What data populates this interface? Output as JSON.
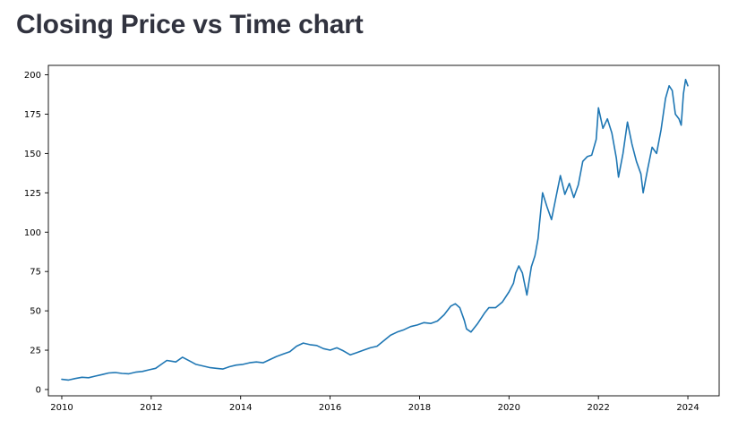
{
  "page": {
    "title": "Closing Price vs Time chart"
  },
  "colors": {
    "line": "#1f77b4",
    "axis": "#000000",
    "title": "#31333f"
  },
  "chart_data": {
    "type": "line",
    "title": "",
    "xlabel": "",
    "ylabel": "",
    "grid": false,
    "legend": "none",
    "xlim": [
      2009.7,
      2024.7
    ],
    "ylim": [
      -4,
      206
    ],
    "x_ticks": [
      2010,
      2012,
      2014,
      2016,
      2018,
      2020,
      2022,
      2024
    ],
    "x_tick_labels": [
      "2010",
      "2012",
      "2014",
      "2016",
      "2018",
      "2020",
      "2022",
      "2024"
    ],
    "y_ticks": [
      0,
      25,
      50,
      75,
      100,
      125,
      150,
      175,
      200
    ],
    "y_tick_labels": [
      "0",
      "25",
      "50",
      "75",
      "100",
      "125",
      "150",
      "175",
      "200"
    ],
    "series": [
      {
        "name": "",
        "x": [
          2010.0,
          2010.15,
          2010.3,
          2010.45,
          2010.6,
          2010.75,
          2010.9,
          2011.05,
          2011.2,
          2011.35,
          2011.5,
          2011.65,
          2011.8,
          2011.95,
          2012.1,
          2012.25,
          2012.35,
          2012.45,
          2012.55,
          2012.7,
          2012.8,
          2012.9,
          2013.0,
          2013.15,
          2013.3,
          2013.45,
          2013.6,
          2013.75,
          2013.9,
          2014.05,
          2014.2,
          2014.35,
          2014.5,
          2014.65,
          2014.8,
          2014.95,
          2015.1,
          2015.25,
          2015.4,
          2015.55,
          2015.7,
          2015.85,
          2016.0,
          2016.15,
          2016.3,
          2016.45,
          2016.6,
          2016.75,
          2016.9,
          2017.05,
          2017.2,
          2017.35,
          2017.5,
          2017.65,
          2017.8,
          2017.95,
          2018.1,
          2018.25,
          2018.4,
          2018.55,
          2018.7,
          2018.8,
          2018.9,
          2019.0,
          2019.05,
          2019.15,
          2019.3,
          2019.45,
          2019.55,
          2019.7,
          2019.85,
          2020.0,
          2020.1,
          2020.15,
          2020.22,
          2020.3,
          2020.4,
          2020.5,
          2020.58,
          2020.65,
          2020.68,
          2020.75,
          2020.85,
          2020.95,
          2021.05,
          2021.15,
          2021.25,
          2021.35,
          2021.45,
          2021.55,
          2021.65,
          2021.75,
          2021.85,
          2021.95,
          2022.0,
          2022.1,
          2022.2,
          2022.3,
          2022.4,
          2022.45,
          2022.55,
          2022.65,
          2022.75,
          2022.85,
          2022.95,
          2023.0,
          2023.1,
          2023.2,
          2023.3,
          2023.4,
          2023.5,
          2023.58,
          2023.65,
          2023.72,
          2023.8,
          2023.85,
          2023.9,
          2023.95,
          2024.0
        ],
        "values": [
          6.5,
          6.0,
          7.0,
          7.8,
          7.5,
          8.5,
          9.5,
          10.5,
          10.8,
          10.2,
          10.0,
          11.0,
          11.5,
          12.5,
          13.5,
          16.5,
          18.5,
          18.0,
          17.5,
          20.5,
          19.0,
          17.5,
          16.0,
          15.0,
          14.0,
          13.5,
          13.0,
          14.5,
          15.5,
          16.0,
          17.0,
          17.5,
          17.0,
          19.0,
          21.0,
          22.5,
          24.0,
          27.5,
          29.5,
          28.5,
          28.0,
          26.0,
          25.0,
          26.5,
          24.5,
          22.0,
          23.5,
          25.0,
          26.5,
          27.5,
          31.0,
          34.5,
          36.5,
          38.0,
          40.0,
          41.0,
          42.5,
          42.0,
          43.5,
          47.5,
          53.0,
          54.5,
          52.0,
          44.0,
          38.5,
          36.5,
          42.0,
          48.5,
          52.0,
          52.0,
          55.5,
          62.0,
          67.5,
          74.0,
          78.5,
          74.0,
          60.0,
          78.0,
          85.0,
          96.0,
          105.0,
          125.0,
          116.0,
          108.0,
          122.0,
          136.0,
          124.0,
          131.0,
          122.0,
          130.0,
          145.0,
          148.0,
          149.0,
          159.0,
          179.0,
          166.0,
          172.0,
          163.0,
          147.0,
          135.0,
          150.0,
          170.0,
          156.0,
          145.0,
          137.0,
          125.0,
          140.0,
          154.0,
          150.0,
          165.0,
          185.0,
          193.0,
          190.0,
          175.0,
          172.0,
          168.0,
          188.0,
          197.0,
          193.0
        ],
        "color": "#1f77b4"
      }
    ]
  }
}
